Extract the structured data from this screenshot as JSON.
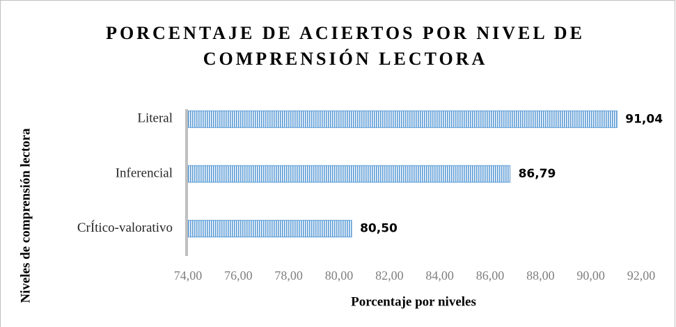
{
  "chart_data": {
    "type": "bar",
    "orientation": "horizontal",
    "title": [
      "PORCENTAJE DE ACIERTOS POR NIVEL DE",
      "COMPRENSIÓN LECTORA"
    ],
    "x_label": "Porcentaje por niveles",
    "y_label": "Niveles de comprensión lectora",
    "categories": [
      "Literal",
      "Inferencial",
      "CrÍtico-valorativo"
    ],
    "values": [
      91.04,
      86.79,
      80.5
    ],
    "value_labels": [
      "91,04",
      "86,79",
      "80,50"
    ],
    "color": "#5b9bd5",
    "xlim": [
      74,
      92
    ],
    "xticks": [
      {
        "value": 74,
        "label": "74,00"
      },
      {
        "value": 76,
        "label": "76,00"
      },
      {
        "value": 78,
        "label": "78,00"
      },
      {
        "value": 80,
        "label": "80,00"
      },
      {
        "value": 82,
        "label": "82,00"
      },
      {
        "value": 84,
        "label": "84,00"
      },
      {
        "value": 86,
        "label": "86,00"
      },
      {
        "value": 88,
        "label": "88,00"
      },
      {
        "value": 90,
        "label": "90,00"
      },
      {
        "value": 92,
        "label": "92,00"
      }
    ],
    "grid": false
  }
}
